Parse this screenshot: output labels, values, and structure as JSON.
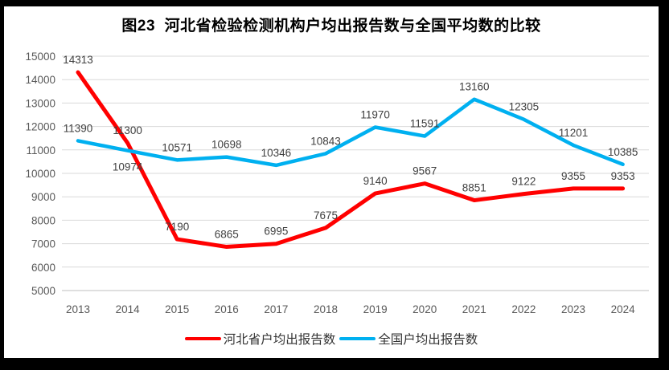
{
  "chart_data": {
    "type": "line",
    "title": "图23  河北省检验检测机构户均出报告数与全国平均数的比较",
    "categories": [
      "2013",
      "2014",
      "2015",
      "2016",
      "2017",
      "2018",
      "2019",
      "2020",
      "2021",
      "2022",
      "2023",
      "2024"
    ],
    "series": [
      {
        "id": "hebei",
        "name": "河北省户均出报告数",
        "color": "#FF0000",
        "values": [
          14313,
          11300,
          7190,
          6865,
          6995,
          7675,
          9140,
          9567,
          8851,
          9122,
          9355,
          9353
        ]
      },
      {
        "id": "national",
        "name": "全国户均出报告数",
        "color": "#00B0F0",
        "values": [
          11390,
          10974,
          10571,
          10698,
          10346,
          10843,
          11970,
          11591,
          13160,
          12305,
          11201,
          10385
        ]
      }
    ],
    "ylim": [
      5000,
      15000
    ],
    "ytick_step": 1000,
    "yticks": [
      5000,
      6000,
      7000,
      8000,
      9000,
      10000,
      11000,
      12000,
      13000,
      14000,
      15000
    ],
    "grid": true,
    "data_labels": true,
    "legend_position": "bottom",
    "label_default_dy": -11,
    "label_dy_overrides": {
      "1,1": 25
    },
    "colors": {
      "gridline": "#D9D9D9",
      "axis_line": "#BFBFBF",
      "tick_text": "#595959",
      "data_label_text": "#404040",
      "title_text": "#000000",
      "legend_text": "#333333",
      "frame": "#000000",
      "background": "#FFFFFF"
    }
  }
}
